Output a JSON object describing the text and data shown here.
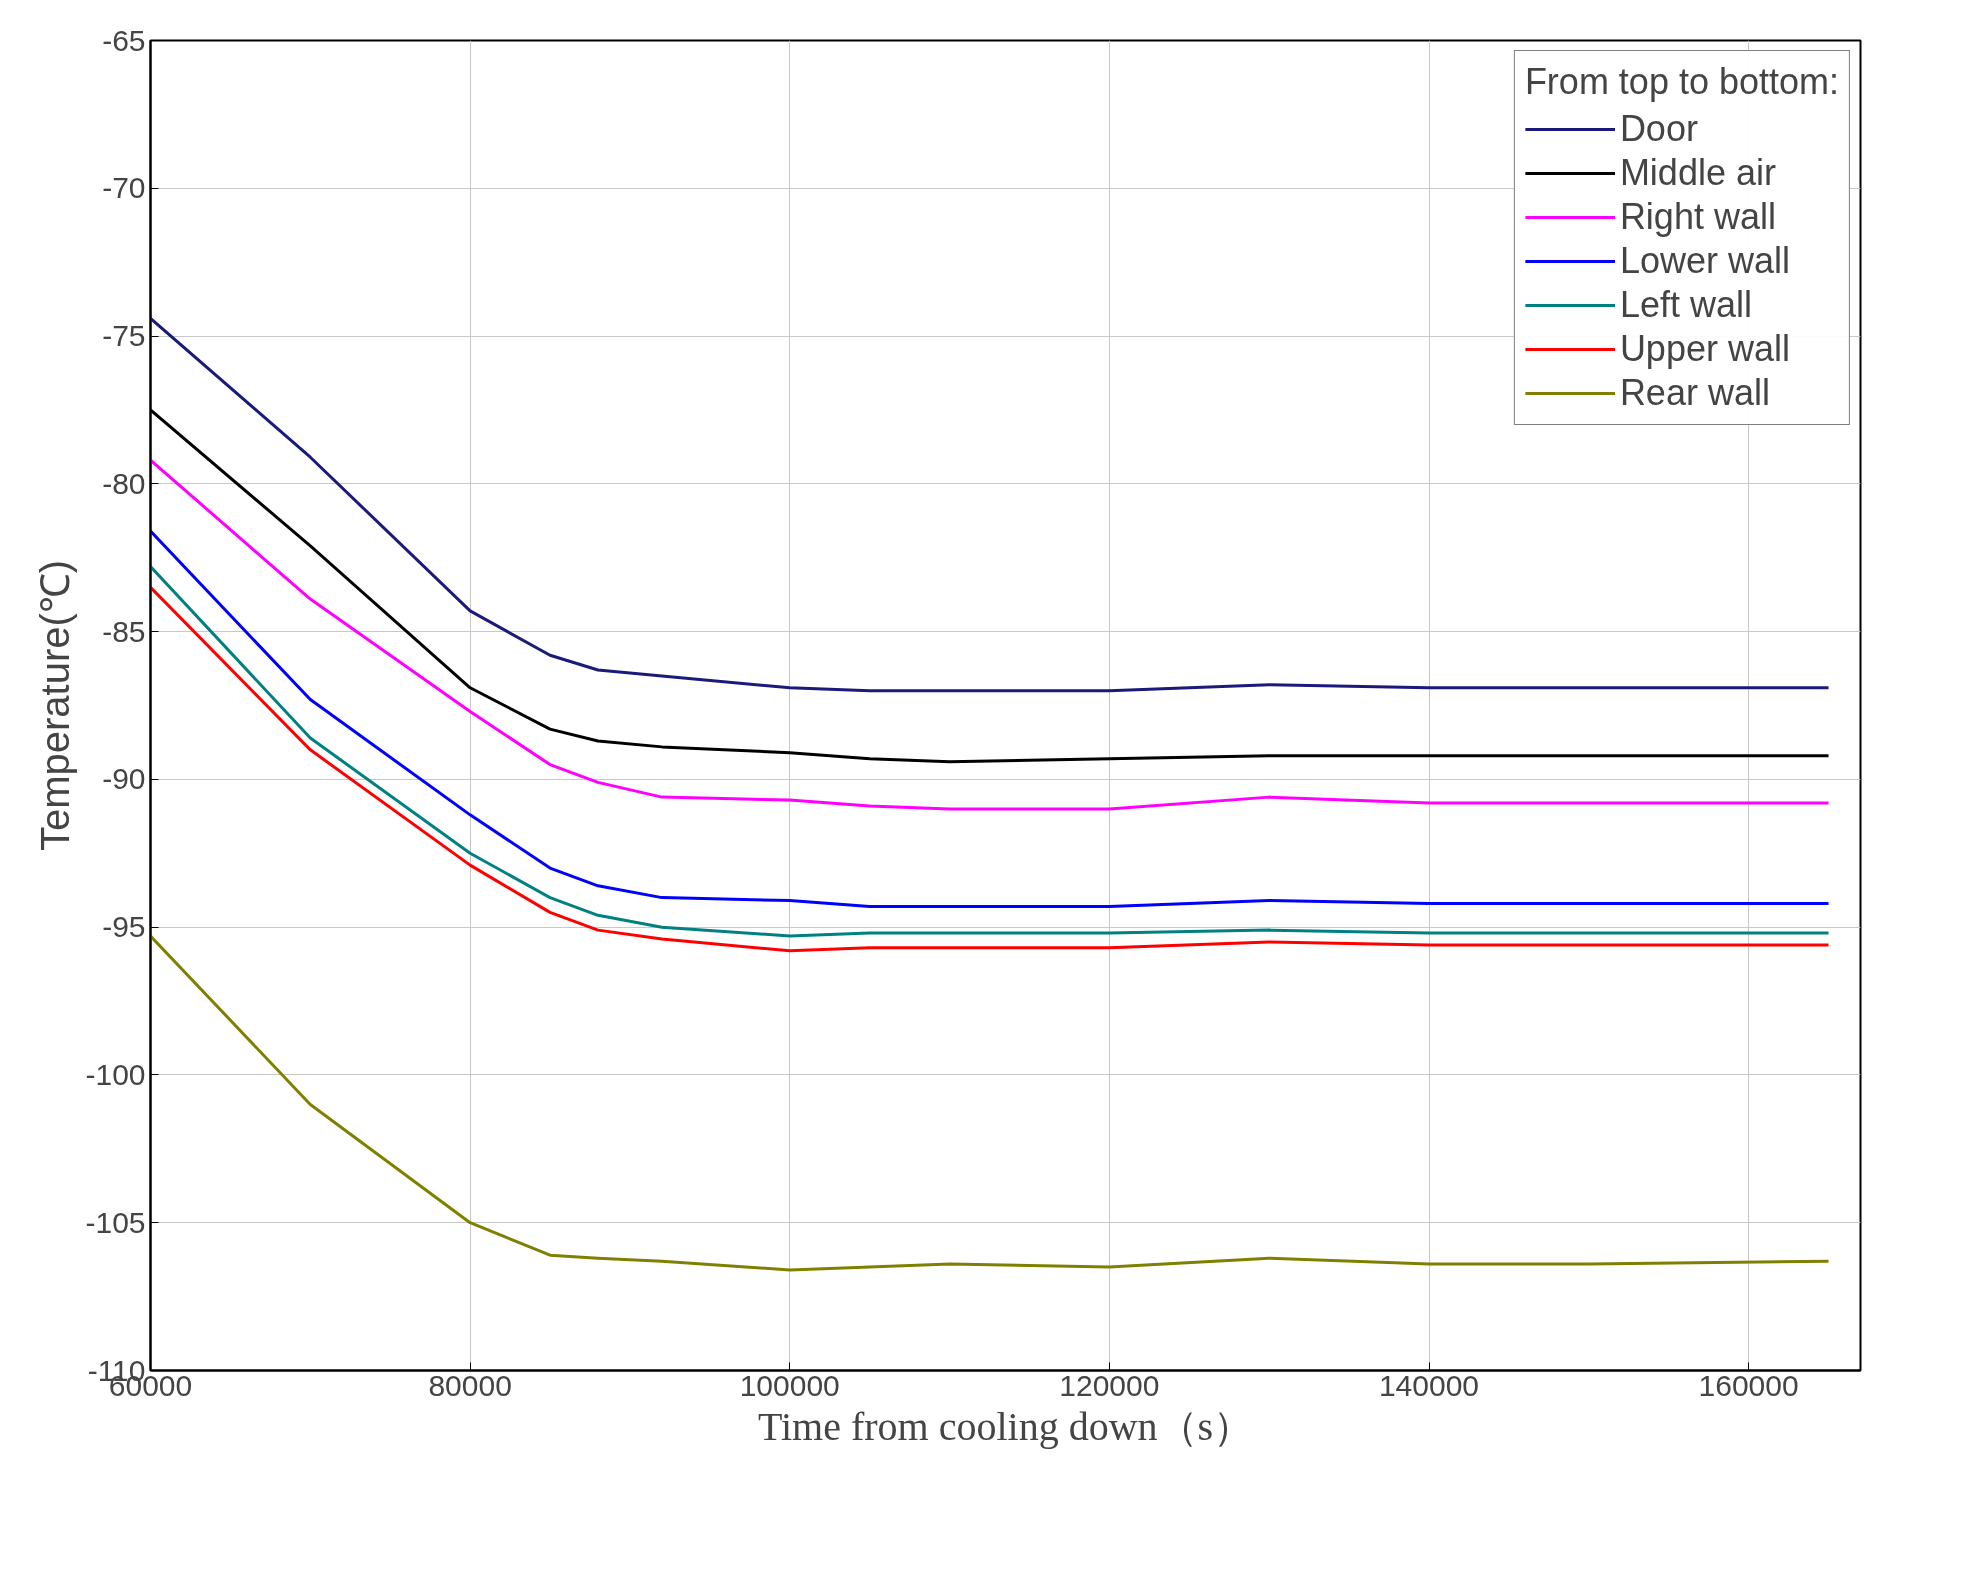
{
  "chart_data": {
    "type": "line",
    "xlabel": "Time from cooling down（s）",
    "ylabel": "Temperature(℃)",
    "legend_title": "From top to bottom:",
    "x": [
      60000,
      70000,
      80000,
      85000,
      88000,
      92000,
      100000,
      105000,
      110000,
      120000,
      130000,
      140000,
      150000,
      165000
    ],
    "series": [
      {
        "name": "Door",
        "color": "#1a1a7a",
        "values": [
          -74.4,
          -79.1,
          -84.3,
          -85.8,
          -86.3,
          -86.5,
          -86.9,
          -87.0,
          -87.0,
          -87.0,
          -86.8,
          -86.9,
          -86.9,
          -86.9
        ]
      },
      {
        "name": "Middle air",
        "color": "#000000",
        "values": [
          -77.5,
          -82.1,
          -86.9,
          -88.3,
          -88.7,
          -88.9,
          -89.1,
          -89.3,
          -89.4,
          -89.3,
          -89.2,
          -89.2,
          -89.2,
          -89.2
        ]
      },
      {
        "name": "Right wall",
        "color": "#ff00ff",
        "values": [
          -79.2,
          -83.9,
          -87.7,
          -89.5,
          -90.1,
          -90.6,
          -90.7,
          -90.9,
          -91.0,
          -91.0,
          -90.6,
          -90.8,
          -90.8,
          -90.8
        ]
      },
      {
        "name": "Lower wall",
        "color": "#0000ff",
        "values": [
          -81.6,
          -87.3,
          -91.2,
          -93.0,
          -93.6,
          -94.0,
          -94.1,
          -94.3,
          -94.3,
          -94.3,
          -94.1,
          -94.2,
          -94.2,
          -94.2
        ]
      },
      {
        "name": "Left wall",
        "color": "#008080",
        "values": [
          -82.8,
          -88.6,
          -92.5,
          -94.0,
          -94.6,
          -95.0,
          -95.3,
          -95.2,
          -95.2,
          -95.2,
          -95.1,
          -95.2,
          -95.2,
          -95.2
        ]
      },
      {
        "name": "Upper wall",
        "color": "#ff0000",
        "values": [
          -83.5,
          -89.0,
          -92.9,
          -94.5,
          -95.1,
          -95.4,
          -95.8,
          -95.7,
          -95.7,
          -95.7,
          -95.5,
          -95.6,
          -95.6,
          -95.6
        ]
      },
      {
        "name": "Rear wall",
        "color": "#808000",
        "values": [
          -95.3,
          -101.0,
          -105.0,
          -106.1,
          -106.2,
          -106.3,
          -106.6,
          -106.5,
          -106.4,
          -106.5,
          -106.2,
          -106.4,
          -106.4,
          -106.3
        ]
      }
    ],
    "xlim": [
      60000,
      167000
    ],
    "ylim": [
      -110,
      -65
    ],
    "xticks": [
      60000,
      80000,
      100000,
      120000,
      140000,
      160000
    ],
    "yticks": [
      -110,
      -105,
      -100,
      -95,
      -90,
      -85,
      -80,
      -75,
      -70,
      -65
    ],
    "grid": true,
    "legend": "top right"
  }
}
